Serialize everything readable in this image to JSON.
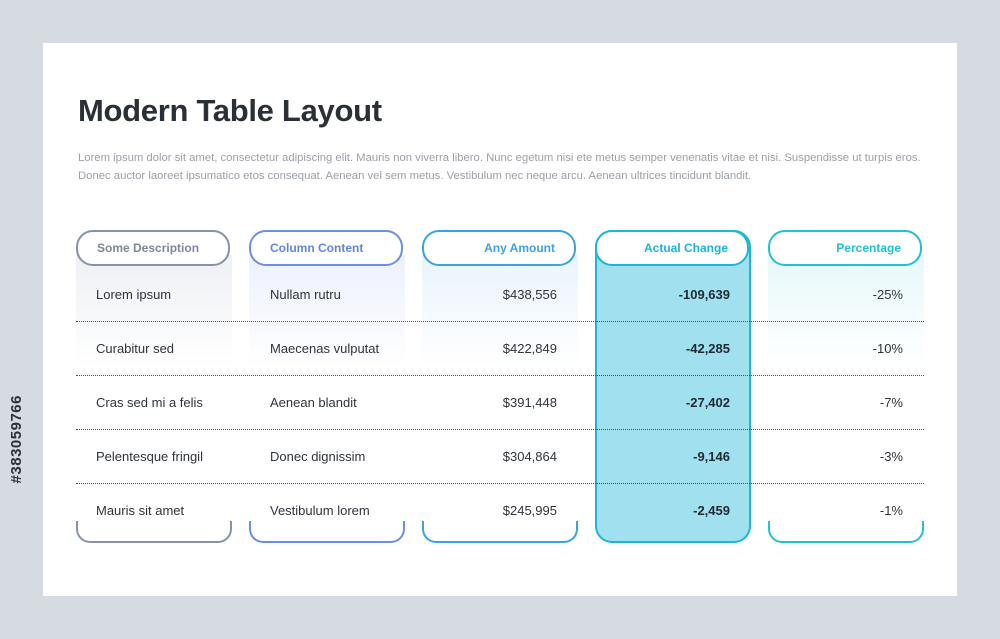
{
  "title": "Modern Table Layout",
  "description": "Lorem ipsum dolor sit amet, consectetur adipiscing elit. Mauris non viverra libero. Nunc egetum nisi ete metus semper venenatis vitae et nisi. Suspendisse ut turpis eros. Donec auctor laoreet ipsumatico etos consequat. Aenean vel sem metus. Vestibulum nec neque arcu. Aenean ultrices tincidunt blandit.",
  "columns": [
    {
      "label": "Some Description",
      "color": "#8593a8"
    },
    {
      "label": "Column Content",
      "color": "#6b8ee6"
    },
    {
      "label": "Any Amount",
      "color": "#3aa3e3"
    },
    {
      "label": "Actual Change",
      "color": "#1ab7d9"
    },
    {
      "label": "Percentage",
      "color": "#23c0d2"
    }
  ],
  "rows": [
    {
      "description": "Lorem ipsum",
      "content": "Nullam rutru",
      "amount": "$438,556",
      "change": "-109,639",
      "percentage": "-25%"
    },
    {
      "description": "Curabitur sed",
      "content": "Maecenas vulputat",
      "amount": "$422,849",
      "change": "-42,285",
      "percentage": "-10%"
    },
    {
      "description": "Cras sed mi a felis",
      "content": "Aenean blandit",
      "amount": "$391,448",
      "change": "-27,402",
      "percentage": "-7%"
    },
    {
      "description": "Pelentesque fringil",
      "content": "Donec dignissim",
      "amount": "$304,864",
      "change": "-9,146",
      "percentage": "-3%"
    },
    {
      "description": "Mauris sit amet",
      "content": "Vestibulum lorem",
      "amount": "$245,995",
      "change": "-2,459",
      "percentage": "-1%"
    }
  ],
  "side_id": "#383059766"
}
